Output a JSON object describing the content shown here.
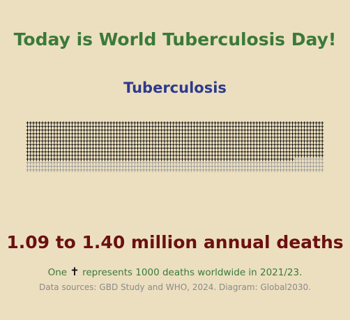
{
  "headline": "Today is World Tuberculosis Day!",
  "colors": {
    "background": "#ecdfbf",
    "headline": "#3a7a3a",
    "title": "#2e3a8c",
    "range": "#6b1010",
    "cross_lower": "#111111",
    "cross_upper": "#9a9a9a",
    "sources": "#8a8a8a"
  },
  "chart_data": {
    "type": "table",
    "title": "Tuberculosis",
    "unit_icon": "cross-icon",
    "deaths_per_icon": 1000,
    "lower_estimate_deaths": 1090000,
    "upper_estimate_deaths": 1400000,
    "range_label": "1.09 to 1.40 million annual deaths"
  },
  "legend": {
    "prefix": "One",
    "icon": "cross-icon",
    "glyph": "✝",
    "suffix": "represents 1000 deaths worldwide in 2021/23."
  },
  "sources": "Data sources: GBD Study and WHO, 2024. Diagram: Global2030."
}
